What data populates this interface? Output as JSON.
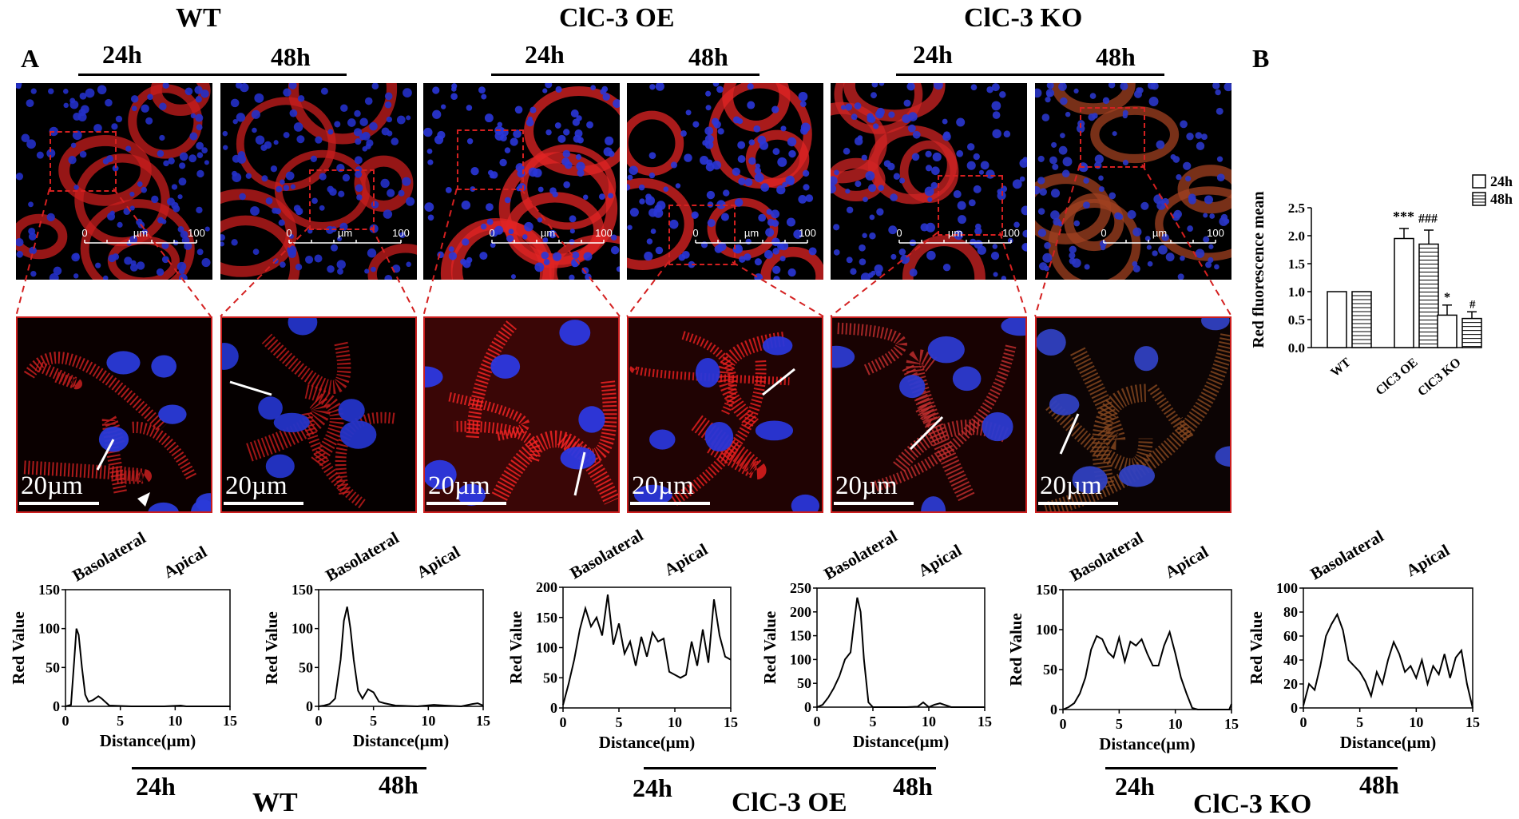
{
  "panel_a_label": "A",
  "panel_b_label": "B",
  "top_groups": [
    {
      "title": "WT",
      "t1": "24h",
      "t2": "48h"
    },
    {
      "title": "ClC-3 OE",
      "t1": "24h",
      "t2": "48h"
    },
    {
      "title": "ClC-3 KO",
      "t1": "24h",
      "t2": "48h"
    }
  ],
  "micrograph_scale": {
    "min": "0",
    "unit": "µm",
    "max": "100"
  },
  "zoom_scale_label": "20µm",
  "zoom_styles": [
    {
      "bg": "#0a0000",
      "red": "#d42020",
      "nuclei": "#2a3ad8"
    },
    {
      "bg": "#050000",
      "red": "#c81c1c",
      "nuclei": "#2434c8"
    },
    {
      "bg": "#3a0606",
      "red": "#ff2626",
      "nuclei": "#2c38e0"
    },
    {
      "bg": "#200303",
      "red": "#ef2020",
      "nuclei": "#2a36d8"
    },
    {
      "bg": "#180202",
      "red": "#c83030",
      "nuclei": "#2c3ad0"
    },
    {
      "bg": "#0c0404",
      "red": "#8a4a20",
      "nuclei": "#3040c0"
    }
  ],
  "profile_labels": {
    "basolateral": "Basolateral",
    "apical": "Apical",
    "xlabel": "Distance(µm)",
    "ylabel": "Red Value"
  },
  "chart_data": [
    {
      "type": "line",
      "xlabel": "Distance(µm)",
      "ylabel": "Red Value",
      "xlim": [
        0,
        15
      ],
      "ylim": [
        0,
        150
      ],
      "xticks": [
        0,
        5,
        10,
        15
      ],
      "yticks": [
        0,
        50,
        100,
        150
      ],
      "x": [
        0,
        0.5,
        0.8,
        1.0,
        1.2,
        1.5,
        1.8,
        2.1,
        2.5,
        3.0,
        3.3,
        4.0,
        6.0,
        9.0,
        10.5,
        11.0,
        13.0,
        15.0
      ],
      "y": [
        0,
        2,
        60,
        100,
        92,
        50,
        15,
        6,
        8,
        13,
        10,
        1,
        0,
        0,
        1,
        0,
        0,
        0
      ]
    },
    {
      "type": "line",
      "xlabel": "Distance(µm)",
      "ylabel": "Red Value",
      "xlim": [
        0,
        15
      ],
      "ylim": [
        0,
        150
      ],
      "xticks": [
        0,
        5,
        10,
        15
      ],
      "yticks": [
        0,
        50,
        100,
        150
      ],
      "x": [
        0,
        0.5,
        1.0,
        1.5,
        2.0,
        2.3,
        2.6,
        2.9,
        3.2,
        3.6,
        4.0,
        4.5,
        5.0,
        5.5,
        6.0,
        7.0,
        9.0,
        10.5,
        11.5,
        13.0,
        14.0,
        14.5,
        15.0
      ],
      "y": [
        0,
        1,
        3,
        10,
        60,
        110,
        128,
        100,
        60,
        20,
        10,
        22,
        18,
        6,
        4,
        1,
        0,
        2,
        1,
        0,
        3,
        4,
        1
      ]
    },
    {
      "type": "line",
      "xlabel": "Distance(µm)",
      "ylabel": "Red Value",
      "xlim": [
        0,
        15
      ],
      "ylim": [
        0,
        200
      ],
      "xticks": [
        0,
        5,
        10,
        15
      ],
      "yticks": [
        0,
        50,
        100,
        150,
        200
      ],
      "x": [
        0,
        0.5,
        1.0,
        1.5,
        2.0,
        2.5,
        3.0,
        3.5,
        4.0,
        4.5,
        5.0,
        5.5,
        6.0,
        6.5,
        7.0,
        7.5,
        8.0,
        8.5,
        9.0,
        9.5,
        10.0,
        10.5,
        11.0,
        11.5,
        12.0,
        12.5,
        13.0,
        13.5,
        14.0,
        14.5,
        15.0
      ],
      "y": [
        5,
        40,
        80,
        130,
        165,
        135,
        150,
        120,
        188,
        105,
        140,
        90,
        110,
        70,
        118,
        85,
        125,
        110,
        115,
        60,
        55,
        50,
        55,
        110,
        70,
        130,
        75,
        180,
        120,
        85,
        80
      ]
    },
    {
      "type": "line",
      "xlabel": "Distance(µm)",
      "ylabel": "Red Value",
      "xlim": [
        0,
        15
      ],
      "ylim": [
        0,
        250
      ],
      "xticks": [
        0,
        5,
        10,
        15
      ],
      "yticks": [
        0,
        50,
        100,
        150,
        200,
        250
      ],
      "x": [
        0,
        0.5,
        1.0,
        1.5,
        2.0,
        2.5,
        3.0,
        3.3,
        3.6,
        3.9,
        4.2,
        4.6,
        5.0,
        6.0,
        8.0,
        9.0,
        9.5,
        10.0,
        10.5,
        11.0,
        12.0,
        15.0
      ],
      "y": [
        0,
        5,
        20,
        40,
        65,
        100,
        115,
        175,
        230,
        200,
        100,
        10,
        0,
        0,
        0,
        1,
        10,
        0,
        5,
        8,
        0,
        0
      ]
    },
    {
      "type": "line",
      "xlabel": "Distance(µm)",
      "ylabel": "Red Value",
      "xlim": [
        0,
        15
      ],
      "ylim": [
        0,
        150
      ],
      "xticks": [
        0,
        5,
        10,
        15
      ],
      "yticks": [
        0,
        50,
        100,
        150
      ],
      "x": [
        0,
        0.5,
        1.0,
        1.5,
        2.0,
        2.5,
        3.0,
        3.5,
        4.0,
        4.5,
        5.0,
        5.5,
        6.0,
        6.5,
        7.0,
        7.5,
        8.0,
        8.5,
        9.0,
        9.5,
        10.0,
        10.5,
        11.0,
        11.5,
        12.0,
        14.8,
        15.0
      ],
      "y": [
        0,
        3,
        8,
        20,
        40,
        75,
        92,
        88,
        72,
        65,
        90,
        60,
        85,
        80,
        88,
        70,
        55,
        55,
        80,
        97,
        70,
        40,
        20,
        2,
        0,
        0,
        7
      ]
    },
    {
      "type": "line",
      "xlabel": "Distance(µm)",
      "ylabel": "Red Value",
      "xlim": [
        0,
        15
      ],
      "ylim": [
        0,
        100
      ],
      "xticks": [
        0,
        5,
        10,
        15
      ],
      "yticks": [
        0,
        20,
        40,
        60,
        80,
        100
      ],
      "x": [
        0,
        0.5,
        1.0,
        1.5,
        2.0,
        2.5,
        3.0,
        3.5,
        4.0,
        4.5,
        5.0,
        5.5,
        6.0,
        6.5,
        7.0,
        7.5,
        8.0,
        8.5,
        9.0,
        9.5,
        10.0,
        10.5,
        11.0,
        11.5,
        12.0,
        12.5,
        13.0,
        13.5,
        14.0,
        14.5,
        15.0
      ],
      "y": [
        2,
        20,
        15,
        35,
        60,
        70,
        78,
        65,
        40,
        35,
        30,
        22,
        10,
        30,
        20,
        40,
        55,
        45,
        30,
        35,
        25,
        40,
        20,
        35,
        28,
        45,
        25,
        42,
        48,
        20,
        0
      ]
    },
    {
      "type": "bar",
      "ylabel": "Red fluorescence mean",
      "ylim": [
        0,
        2.5
      ],
      "yticks": [
        0.0,
        0.5,
        1.0,
        1.5,
        2.0,
        2.5
      ],
      "categories": [
        "WT",
        "ClC3 OE",
        "ClC3 KO"
      ],
      "series": [
        {
          "name": "24h",
          "values": [
            1.0,
            1.95,
            0.58
          ],
          "errors": [
            0,
            0.18,
            0.18
          ]
        },
        {
          "name": "48h",
          "values": [
            1.0,
            1.85,
            0.52
          ],
          "errors": [
            0,
            0.25,
            0.12
          ]
        }
      ],
      "annotations": [
        "***",
        "###",
        "*",
        "#"
      ]
    }
  ],
  "bottom_groups": [
    {
      "title": "WT",
      "t1": "24h",
      "t2": "48h"
    },
    {
      "title": "ClC-3 OE",
      "t1": "24h",
      "t2": "48h"
    },
    {
      "title": "ClC-3 KO",
      "t1": "24h",
      "t2": "48h"
    }
  ]
}
